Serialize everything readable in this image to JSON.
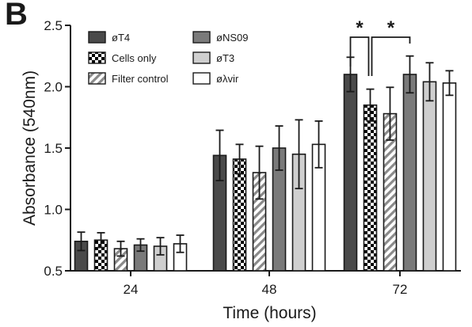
{
  "panel_label": "B",
  "chart_data": {
    "type": "bar",
    "categories": [
      "24",
      "48",
      "72"
    ],
    "xlabel": "Time (hours)",
    "ylabel": "Absorbance (540nm)",
    "ylim": [
      0.5,
      2.5
    ],
    "yticks": [
      "0.5",
      "1.0",
      "1.5",
      "2.0",
      "2.5"
    ],
    "grid": false,
    "legend_placement": "top-left",
    "series": [
      {
        "name": "øT4",
        "values": [
          0.74,
          1.44,
          2.1
        ],
        "errors": [
          0.075,
          0.205,
          0.14
        ],
        "fill": "#4a4a4a",
        "pattern": "solid"
      },
      {
        "name": "Cells only",
        "values": [
          0.75,
          1.41,
          1.85
        ],
        "errors": [
          0.06,
          0.12,
          0.13
        ],
        "fill": "#000000",
        "pattern": "checker"
      },
      {
        "name": "Filter control",
        "values": [
          0.68,
          1.3,
          1.78
        ],
        "errors": [
          0.06,
          0.215,
          0.215
        ],
        "fill": "#8a8a8a",
        "pattern": "hatch"
      },
      {
        "name": "øNS09",
        "values": [
          0.71,
          1.5,
          2.1
        ],
        "errors": [
          0.05,
          0.18,
          0.15
        ],
        "fill": "#7a7a7a",
        "pattern": "solid"
      },
      {
        "name": "øT3",
        "values": [
          0.7,
          1.45,
          2.04
        ],
        "errors": [
          0.07,
          0.28,
          0.155
        ],
        "fill": "#cfcfcf",
        "pattern": "solid"
      },
      {
        "name": "øλvir",
        "values": [
          0.72,
          1.53,
          2.03
        ],
        "errors": [
          0.07,
          0.19,
          0.1
        ],
        "fill": "#ffffff",
        "pattern": "solid"
      }
    ],
    "significance": [
      {
        "category": "72",
        "from_series": "øT4",
        "to_series": "Cells only",
        "label": "*"
      },
      {
        "category": "72",
        "from_series": "Cells only",
        "to_series": "øNS09",
        "label": "*"
      }
    ]
  }
}
